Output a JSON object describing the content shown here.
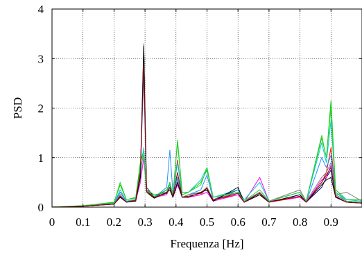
{
  "chart_data": {
    "type": "line",
    "title": "",
    "xlabel": "Frequenza [Hz]",
    "ylabel": "PSD",
    "xlim": [
      0,
      1.0
    ],
    "ylim": [
      0,
      4
    ],
    "xticks": [
      0,
      0.1,
      0.2,
      0.3,
      0.4,
      0.5,
      0.6,
      0.7,
      0.8,
      0.9
    ],
    "xtick_labels": [
      "0",
      "0.1",
      "0.2",
      "0.3",
      "0.4",
      "0.5",
      "0.6",
      "0.7",
      "0.8",
      "0.9"
    ],
    "yticks": [
      0,
      1,
      2,
      3,
      4
    ],
    "ytick_labels": [
      "0",
      "1",
      "2",
      "3",
      "4"
    ],
    "grid": true,
    "legend": "none",
    "series": [
      {
        "color": "#00008b",
        "values": [
          [
            0,
            0
          ],
          [
            0.1,
            0.02
          ],
          [
            0.2,
            0.06
          ],
          [
            0.22,
            0.25
          ],
          [
            0.24,
            0.1
          ],
          [
            0.27,
            0.15
          ],
          [
            0.285,
            0.6
          ],
          [
            0.296,
            3.2
          ],
          [
            0.305,
            0.4
          ],
          [
            0.33,
            0.2
          ],
          [
            0.37,
            0.35
          ],
          [
            0.38,
            0.45
          ],
          [
            0.39,
            0.2
          ],
          [
            0.405,
            0.5
          ],
          [
            0.42,
            0.2
          ],
          [
            0.44,
            0.25
          ],
          [
            0.48,
            0.3
          ],
          [
            0.5,
            0.35
          ],
          [
            0.52,
            0.15
          ],
          [
            0.6,
            0.35
          ],
          [
            0.62,
            0.1
          ],
          [
            0.67,
            0.3
          ],
          [
            0.7,
            0.1
          ],
          [
            0.8,
            0.25
          ],
          [
            0.82,
            0.1
          ],
          [
            0.87,
            0.4
          ],
          [
            0.885,
            0.6
          ],
          [
            0.9,
            0.75
          ],
          [
            0.915,
            0.2
          ],
          [
            0.95,
            0.1
          ],
          [
            1.0,
            0.08
          ]
        ]
      },
      {
        "color": "#ff0000",
        "values": [
          [
            0,
            0
          ],
          [
            0.1,
            0.02
          ],
          [
            0.2,
            0.08
          ],
          [
            0.22,
            0.3
          ],
          [
            0.24,
            0.12
          ],
          [
            0.27,
            0.15
          ],
          [
            0.285,
            0.8
          ],
          [
            0.296,
            2.95
          ],
          [
            0.305,
            0.35
          ],
          [
            0.33,
            0.2
          ],
          [
            0.37,
            0.3
          ],
          [
            0.38,
            0.5
          ],
          [
            0.39,
            0.25
          ],
          [
            0.405,
            0.95
          ],
          [
            0.42,
            0.2
          ],
          [
            0.44,
            0.2
          ],
          [
            0.48,
            0.25
          ],
          [
            0.5,
            0.4
          ],
          [
            0.52,
            0.15
          ],
          [
            0.6,
            0.25
          ],
          [
            0.62,
            0.1
          ],
          [
            0.67,
            0.25
          ],
          [
            0.7,
            0.1
          ],
          [
            0.8,
            0.2
          ],
          [
            0.82,
            0.1
          ],
          [
            0.87,
            0.5
          ],
          [
            0.885,
            0.7
          ],
          [
            0.9,
            1.2
          ],
          [
            0.915,
            0.25
          ],
          [
            0.95,
            0.12
          ],
          [
            1.0,
            0.1
          ]
        ]
      },
      {
        "color": "#00cc00",
        "values": [
          [
            0,
            0
          ],
          [
            0.1,
            0.03
          ],
          [
            0.2,
            0.1
          ],
          [
            0.22,
            0.45
          ],
          [
            0.24,
            0.15
          ],
          [
            0.27,
            0.2
          ],
          [
            0.285,
            0.9
          ],
          [
            0.296,
            1.15
          ],
          [
            0.305,
            0.35
          ],
          [
            0.33,
            0.25
          ],
          [
            0.37,
            0.3
          ],
          [
            0.38,
            0.5
          ],
          [
            0.39,
            0.25
          ],
          [
            0.405,
            1.35
          ],
          [
            0.42,
            0.3
          ],
          [
            0.44,
            0.3
          ],
          [
            0.48,
            0.5
          ],
          [
            0.5,
            0.75
          ],
          [
            0.52,
            0.2
          ],
          [
            0.6,
            0.3
          ],
          [
            0.62,
            0.12
          ],
          [
            0.67,
            0.3
          ],
          [
            0.7,
            0.12
          ],
          [
            0.8,
            0.3
          ],
          [
            0.82,
            0.12
          ],
          [
            0.87,
            1.4
          ],
          [
            0.885,
            1.0
          ],
          [
            0.9,
            2.15
          ],
          [
            0.915,
            0.35
          ],
          [
            0.95,
            0.15
          ],
          [
            1.0,
            0.15
          ]
        ]
      },
      {
        "color": "#1e90ff",
        "values": [
          [
            0,
            0
          ],
          [
            0.1,
            0.02
          ],
          [
            0.2,
            0.07
          ],
          [
            0.22,
            0.3
          ],
          [
            0.24,
            0.12
          ],
          [
            0.27,
            0.15
          ],
          [
            0.285,
            0.7
          ],
          [
            0.296,
            2.7
          ],
          [
            0.305,
            0.3
          ],
          [
            0.33,
            0.2
          ],
          [
            0.37,
            0.4
          ],
          [
            0.38,
            1.15
          ],
          [
            0.39,
            0.3
          ],
          [
            0.405,
            0.6
          ],
          [
            0.42,
            0.2
          ],
          [
            0.44,
            0.25
          ],
          [
            0.48,
            0.35
          ],
          [
            0.5,
            0.65
          ],
          [
            0.52,
            0.15
          ],
          [
            0.6,
            0.3
          ],
          [
            0.62,
            0.1
          ],
          [
            0.67,
            0.25
          ],
          [
            0.7,
            0.1
          ],
          [
            0.8,
            0.25
          ],
          [
            0.82,
            0.1
          ],
          [
            0.87,
            1.0
          ],
          [
            0.885,
            0.8
          ],
          [
            0.9,
            1.05
          ],
          [
            0.915,
            0.25
          ],
          [
            0.95,
            0.12
          ],
          [
            1.0,
            0.1
          ]
        ]
      },
      {
        "color": "#ff00ff",
        "values": [
          [
            0,
            0
          ],
          [
            0.1,
            0.02
          ],
          [
            0.2,
            0.06
          ],
          [
            0.22,
            0.2
          ],
          [
            0.24,
            0.1
          ],
          [
            0.27,
            0.12
          ],
          [
            0.285,
            0.5
          ],
          [
            0.296,
            1.0
          ],
          [
            0.305,
            0.3
          ],
          [
            0.33,
            0.2
          ],
          [
            0.37,
            0.25
          ],
          [
            0.38,
            0.4
          ],
          [
            0.39,
            0.2
          ],
          [
            0.405,
            0.45
          ],
          [
            0.42,
            0.2
          ],
          [
            0.44,
            0.2
          ],
          [
            0.48,
            0.25
          ],
          [
            0.5,
            0.3
          ],
          [
            0.52,
            0.12
          ],
          [
            0.6,
            0.25
          ],
          [
            0.62,
            0.1
          ],
          [
            0.67,
            0.6
          ],
          [
            0.7,
            0.12
          ],
          [
            0.8,
            0.2
          ],
          [
            0.82,
            0.1
          ],
          [
            0.87,
            0.55
          ],
          [
            0.885,
            0.6
          ],
          [
            0.9,
            0.85
          ],
          [
            0.915,
            0.2
          ],
          [
            0.95,
            0.1
          ],
          [
            1.0,
            0.08
          ]
        ]
      },
      {
        "color": "#00cccc",
        "values": [
          [
            0,
            0
          ],
          [
            0.1,
            0.02
          ],
          [
            0.2,
            0.08
          ],
          [
            0.22,
            0.35
          ],
          [
            0.24,
            0.12
          ],
          [
            0.27,
            0.15
          ],
          [
            0.285,
            0.6
          ],
          [
            0.296,
            1.2
          ],
          [
            0.305,
            0.3
          ],
          [
            0.33,
            0.2
          ],
          [
            0.37,
            0.3
          ],
          [
            0.38,
            0.45
          ],
          [
            0.39,
            0.25
          ],
          [
            0.405,
            0.9
          ],
          [
            0.42,
            0.25
          ],
          [
            0.44,
            0.3
          ],
          [
            0.48,
            0.55
          ],
          [
            0.5,
            0.8
          ],
          [
            0.52,
            0.2
          ],
          [
            0.6,
            0.35
          ],
          [
            0.62,
            0.15
          ],
          [
            0.67,
            0.5
          ],
          [
            0.7,
            0.12
          ],
          [
            0.8,
            0.3
          ],
          [
            0.82,
            0.12
          ],
          [
            0.87,
            1.3
          ],
          [
            0.885,
            0.9
          ],
          [
            0.9,
            1.75
          ],
          [
            0.915,
            0.3
          ],
          [
            0.95,
            0.15
          ],
          [
            1.0,
            0.12
          ]
        ]
      },
      {
        "color": "#808080",
        "values": [
          [
            0,
            0
          ],
          [
            0.1,
            0.02
          ],
          [
            0.2,
            0.07
          ],
          [
            0.22,
            0.25
          ],
          [
            0.24,
            0.1
          ],
          [
            0.27,
            0.15
          ],
          [
            0.285,
            0.65
          ],
          [
            0.296,
            3.3
          ],
          [
            0.305,
            0.35
          ],
          [
            0.33,
            0.2
          ],
          [
            0.37,
            0.3
          ],
          [
            0.38,
            0.4
          ],
          [
            0.39,
            0.2
          ],
          [
            0.405,
            0.55
          ],
          [
            0.42,
            0.2
          ],
          [
            0.44,
            0.25
          ],
          [
            0.48,
            0.3
          ],
          [
            0.5,
            0.4
          ],
          [
            0.52,
            0.15
          ],
          [
            0.6,
            0.3
          ],
          [
            0.62,
            0.12
          ],
          [
            0.67,
            0.3
          ],
          [
            0.7,
            0.12
          ],
          [
            0.8,
            0.35
          ],
          [
            0.82,
            0.12
          ],
          [
            0.87,
            0.6
          ],
          [
            0.885,
            0.7
          ],
          [
            0.9,
            0.9
          ],
          [
            0.915,
            0.25
          ],
          [
            0.95,
            0.3
          ],
          [
            1.0,
            0.12
          ]
        ]
      },
      {
        "color": "#000000",
        "values": [
          [
            0,
            0
          ],
          [
            0.1,
            0.02
          ],
          [
            0.2,
            0.06
          ],
          [
            0.22,
            0.2
          ],
          [
            0.24,
            0.1
          ],
          [
            0.27,
            0.12
          ],
          [
            0.285,
            0.6
          ],
          [
            0.296,
            3.25
          ],
          [
            0.305,
            0.3
          ],
          [
            0.33,
            0.18
          ],
          [
            0.37,
            0.3
          ],
          [
            0.38,
            0.35
          ],
          [
            0.39,
            0.2
          ],
          [
            0.405,
            0.5
          ],
          [
            0.42,
            0.2
          ],
          [
            0.44,
            0.2
          ],
          [
            0.48,
            0.3
          ],
          [
            0.5,
            0.35
          ],
          [
            0.52,
            0.12
          ],
          [
            0.6,
            0.4
          ],
          [
            0.62,
            0.1
          ],
          [
            0.67,
            0.25
          ],
          [
            0.7,
            0.1
          ],
          [
            0.8,
            0.25
          ],
          [
            0.82,
            0.1
          ],
          [
            0.87,
            0.45
          ],
          [
            0.885,
            0.55
          ],
          [
            0.9,
            0.6
          ],
          [
            0.915,
            0.2
          ],
          [
            0.95,
            0.1
          ],
          [
            1.0,
            0.08
          ]
        ]
      },
      {
        "color": "#32cd32",
        "values": [
          [
            0,
            0
          ],
          [
            0.1,
            0.03
          ],
          [
            0.2,
            0.09
          ],
          [
            0.22,
            0.5
          ],
          [
            0.24,
            0.15
          ],
          [
            0.27,
            0.18
          ],
          [
            0.285,
            0.8
          ],
          [
            0.296,
            1.05
          ],
          [
            0.305,
            0.3
          ],
          [
            0.33,
            0.22
          ],
          [
            0.37,
            0.35
          ],
          [
            0.38,
            0.5
          ],
          [
            0.39,
            0.25
          ],
          [
            0.405,
            1.3
          ],
          [
            0.42,
            0.25
          ],
          [
            0.44,
            0.3
          ],
          [
            0.48,
            0.45
          ],
          [
            0.5,
            0.8
          ],
          [
            0.52,
            0.2
          ],
          [
            0.6,
            0.3
          ],
          [
            0.62,
            0.12
          ],
          [
            0.67,
            0.35
          ],
          [
            0.7,
            0.12
          ],
          [
            0.8,
            0.3
          ],
          [
            0.82,
            0.12
          ],
          [
            0.87,
            1.45
          ],
          [
            0.885,
            1.0
          ],
          [
            0.9,
            2.0
          ],
          [
            0.915,
            0.3
          ],
          [
            0.95,
            0.12
          ],
          [
            1.0,
            0.1
          ]
        ]
      },
      {
        "color": "#8b0000",
        "values": [
          [
            0,
            0
          ],
          [
            0.1,
            0.02
          ],
          [
            0.2,
            0.06
          ],
          [
            0.22,
            0.22
          ],
          [
            0.24,
            0.1
          ],
          [
            0.27,
            0.14
          ],
          [
            0.285,
            0.7
          ],
          [
            0.296,
            2.9
          ],
          [
            0.305,
            0.32
          ],
          [
            0.33,
            0.2
          ],
          [
            0.37,
            0.28
          ],
          [
            0.38,
            0.4
          ],
          [
            0.39,
            0.22
          ],
          [
            0.405,
            0.7
          ],
          [
            0.42,
            0.2
          ],
          [
            0.44,
            0.22
          ],
          [
            0.48,
            0.28
          ],
          [
            0.5,
            0.38
          ],
          [
            0.52,
            0.14
          ],
          [
            0.6,
            0.28
          ],
          [
            0.62,
            0.1
          ],
          [
            0.67,
            0.28
          ],
          [
            0.7,
            0.1
          ],
          [
            0.8,
            0.22
          ],
          [
            0.82,
            0.1
          ],
          [
            0.87,
            0.5
          ],
          [
            0.885,
            0.65
          ],
          [
            0.9,
            0.8
          ],
          [
            0.915,
            0.22
          ],
          [
            0.95,
            0.1
          ],
          [
            1.0,
            0.08
          ]
        ]
      }
    ]
  }
}
